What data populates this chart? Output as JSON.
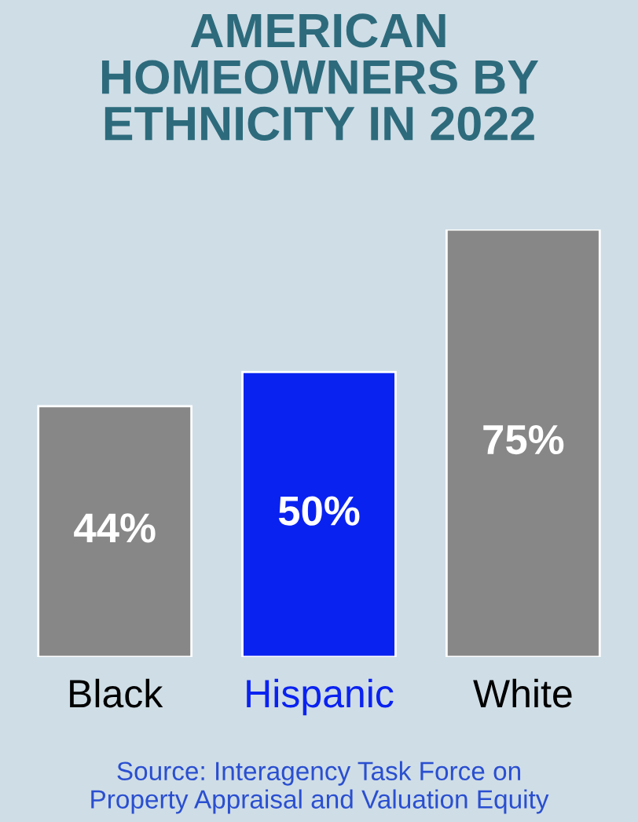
{
  "chart_data": {
    "type": "bar",
    "title": "AMERICAN\nHOMEOWNERS BY\nETHNICITY IN 2022",
    "categories": [
      "Black",
      "Hispanic",
      "White"
    ],
    "values": [
      44,
      50,
      75
    ],
    "colors": [
      "#878787",
      "#0a22f0",
      "#878787"
    ],
    "value_labels": [
      "44%",
      "50%",
      "75%"
    ],
    "annotations": [
      "Source: Interagency Task Force on\nProperty Appraisal and Valuation Equity"
    ]
  }
}
